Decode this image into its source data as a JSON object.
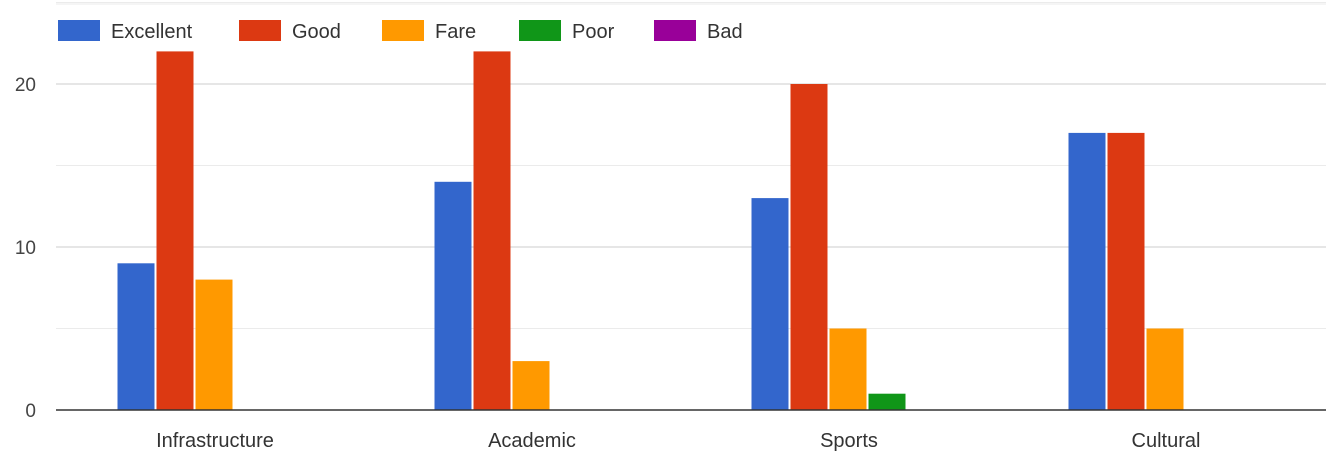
{
  "chart_data": {
    "type": "bar",
    "title": "",
    "xlabel": "",
    "ylabel": "",
    "categories": [
      "Infrastructure",
      "Academic",
      "Sports",
      "Cultural"
    ],
    "series": [
      {
        "name": "Excellent",
        "color": "#3366cc",
        "values": [
          9,
          14,
          13,
          17
        ]
      },
      {
        "name": "Good",
        "color": "#dc3912",
        "values": [
          22,
          22,
          20,
          17
        ]
      },
      {
        "name": "Fare",
        "color": "#ff9900",
        "values": [
          8,
          3,
          5,
          5
        ]
      },
      {
        "name": "Poor",
        "color": "#109618",
        "values": [
          0,
          0,
          1,
          0
        ]
      },
      {
        "name": "Bad",
        "color": "#990099",
        "values": [
          0,
          0,
          0,
          0
        ]
      }
    ],
    "ylim": [
      0,
      25
    ],
    "yticks": [
      0,
      10,
      20
    ],
    "grid": true,
    "legend_position": "top-left"
  }
}
